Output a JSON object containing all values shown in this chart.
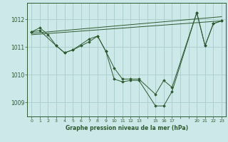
{
  "background_color": "#cce8e8",
  "grid_color": "#aacccc",
  "line_color": "#2d5a2d",
  "marker_color": "#2d5a2d",
  "title": "Graphe pression niveau de la mer (hPa)",
  "title_color": "#2d5a2d",
  "ylabel_values": [
    1009,
    1010,
    1011,
    1012
  ],
  "xlim": [
    -0.5,
    23.5
  ],
  "ylim": [
    1008.5,
    1012.6
  ],
  "xtick_positions": [
    0,
    1,
    2,
    3,
    4,
    5,
    6,
    7,
    8,
    9,
    10,
    11,
    12,
    13,
    15,
    16,
    17,
    20,
    21,
    22,
    23
  ],
  "series1_x": [
    0,
    1,
    2,
    3,
    4,
    5,
    6,
    7,
    8,
    9,
    10,
    11,
    12,
    13,
    15,
    16,
    17,
    20,
    21,
    22,
    23
  ],
  "series1_y": [
    1011.55,
    1011.7,
    1011.45,
    1011.05,
    1010.8,
    1010.9,
    1011.05,
    1011.2,
    1011.4,
    1010.85,
    1010.25,
    1009.85,
    1009.85,
    1009.85,
    1009.3,
    1009.8,
    1009.55,
    1012.25,
    1011.05,
    1011.85,
    1011.95
  ],
  "series2_x": [
    0,
    1,
    3,
    4,
    5,
    7,
    8,
    9,
    10,
    11,
    12,
    13,
    15,
    16,
    17,
    20,
    21,
    22,
    23
  ],
  "series2_y": [
    1011.55,
    1011.6,
    1011.05,
    1010.8,
    1010.9,
    1011.3,
    1011.4,
    1010.85,
    1009.85,
    1009.75,
    1009.8,
    1009.8,
    1008.88,
    1008.88,
    1009.4,
    1012.25,
    1011.05,
    1011.85,
    1011.95
  ],
  "trend_x": [
    0,
    23
  ],
  "trend_y": [
    1011.5,
    1012.1
  ]
}
